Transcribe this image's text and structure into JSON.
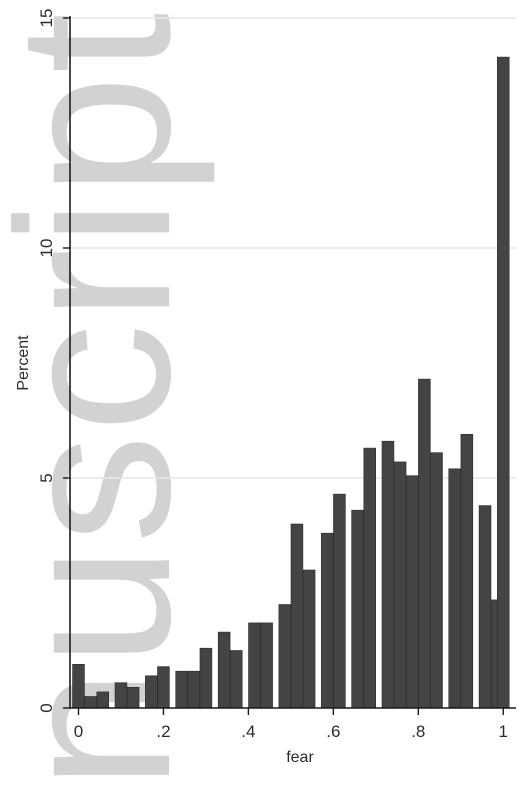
{
  "chart_data": {
    "type": "bar",
    "xlabel": "fear",
    "ylabel": "Percent",
    "xlim": [
      -0.02,
      1.03
    ],
    "ylim": [
      0,
      15
    ],
    "bin_width": 0.02857,
    "x_ticks": [
      {
        "value": 0,
        "label": "0"
      },
      {
        "value": 0.2,
        "label": ".2"
      },
      {
        "value": 0.4,
        "label": ".4"
      },
      {
        "value": 0.6,
        "label": ".6"
      },
      {
        "value": 0.8,
        "label": ".8"
      },
      {
        "value": 1,
        "label": "1"
      }
    ],
    "y_ticks": [
      {
        "value": 0,
        "label": "0"
      },
      {
        "value": 5,
        "label": "5"
      },
      {
        "value": 10,
        "label": "10"
      },
      {
        "value": 15,
        "label": "15"
      }
    ],
    "grid": true,
    "bars": [
      {
        "x": 0.0,
        "y": 0.95
      },
      {
        "x": 0.0286,
        "y": 0.25
      },
      {
        "x": 0.0571,
        "y": 0.35
      },
      {
        "x": 0.1,
        "y": 0.55
      },
      {
        "x": 0.1286,
        "y": 0.45
      },
      {
        "x": 0.1714,
        "y": 0.7
      },
      {
        "x": 0.2,
        "y": 0.9
      },
      {
        "x": 0.2429,
        "y": 0.8
      },
      {
        "x": 0.2714,
        "y": 0.8
      },
      {
        "x": 0.3,
        "y": 1.3
      },
      {
        "x": 0.3429,
        "y": 1.65
      },
      {
        "x": 0.3714,
        "y": 1.25
      },
      {
        "x": 0.4143,
        "y": 1.85
      },
      {
        "x": 0.4429,
        "y": 1.85
      },
      {
        "x": 0.4857,
        "y": 2.25
      },
      {
        "x": 0.5143,
        "y": 4.0
      },
      {
        "x": 0.5429,
        "y": 3.0
      },
      {
        "x": 0.5857,
        "y": 3.8
      },
      {
        "x": 0.6143,
        "y": 4.65
      },
      {
        "x": 0.6571,
        "y": 4.3
      },
      {
        "x": 0.6857,
        "y": 5.65
      },
      {
        "x": 0.7286,
        "y": 5.8
      },
      {
        "x": 0.7571,
        "y": 5.35
      },
      {
        "x": 0.7857,
        "y": 5.05
      },
      {
        "x": 0.8143,
        "y": 7.15
      },
      {
        "x": 0.8429,
        "y": 5.55
      },
      {
        "x": 0.8857,
        "y": 5.2
      },
      {
        "x": 0.9143,
        "y": 5.95
      },
      {
        "x": 0.9571,
        "y": 4.4
      },
      {
        "x": 0.9857,
        "y": 2.35
      },
      {
        "x": 1.0,
        "y": 14.15
      }
    ]
  },
  "watermark": {
    "text": "nuscript"
  },
  "colors": {
    "bar_fill": "#444444",
    "bar_stroke": "#2a2a2a",
    "grid": "#e6e6e6",
    "axis": "#1a1a1a"
  }
}
